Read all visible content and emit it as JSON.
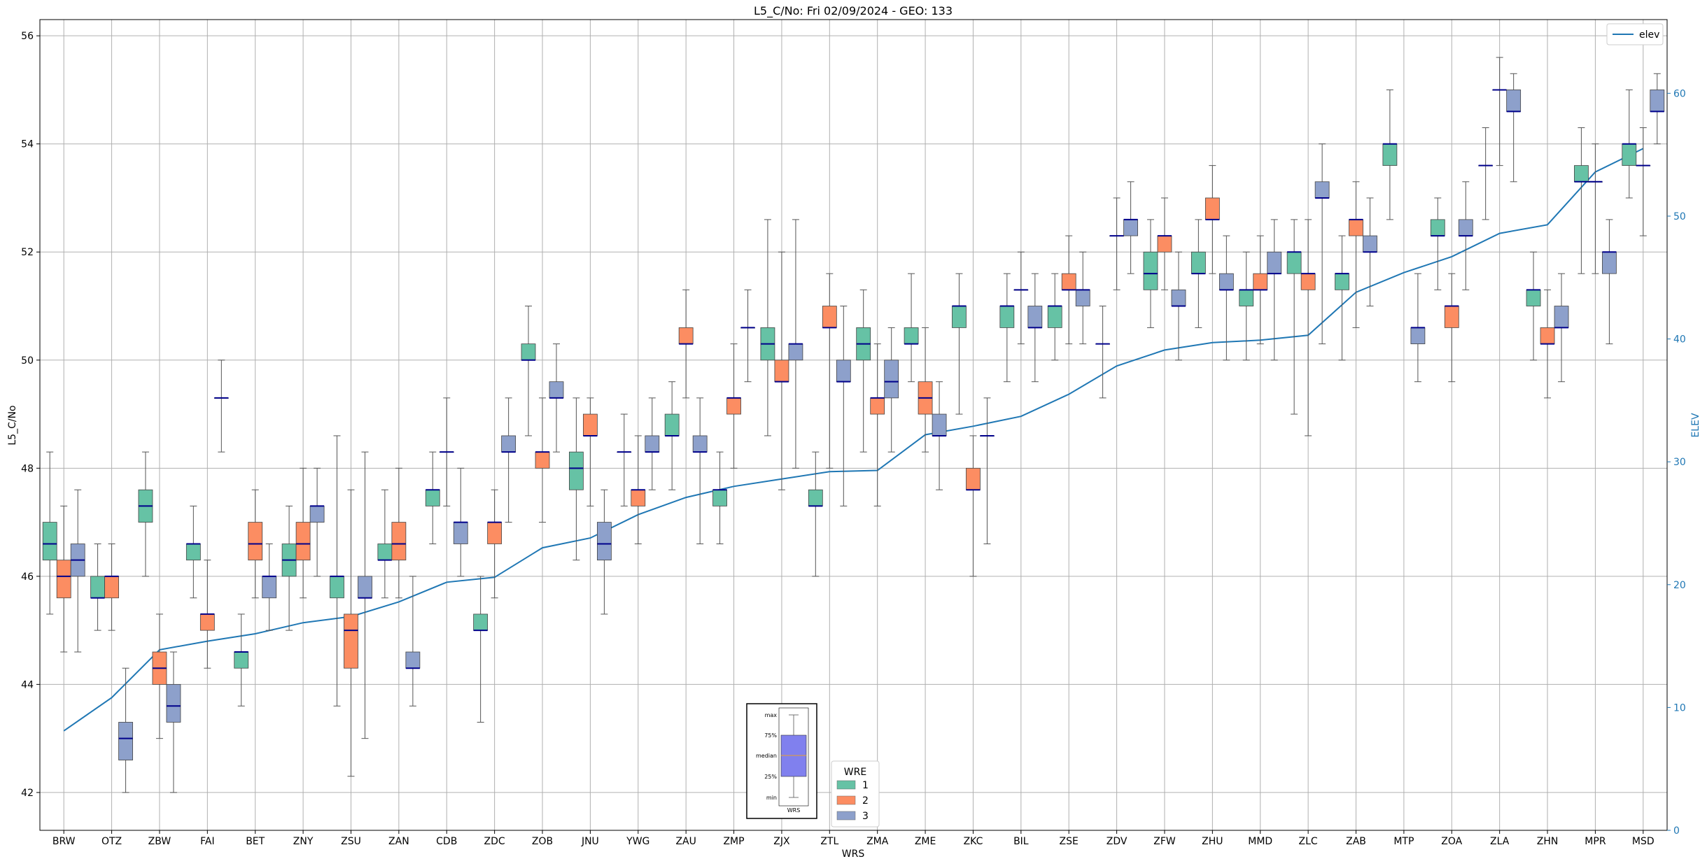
{
  "chart_data": {
    "type": "box",
    "title": "L5_C/No: Fri 02/09/2024 - GEO: 133",
    "xlabel": "WRS",
    "ylabel": "L5_C/No",
    "y2label": "ELEV",
    "ylim": [
      41.3,
      56.3
    ],
    "y2lim": [
      0,
      66
    ],
    "yticks": [
      42,
      44,
      46,
      48,
      50,
      52,
      54,
      56
    ],
    "y2ticks": [
      0,
      10,
      20,
      30,
      40,
      50,
      60
    ],
    "grid": true,
    "categories": [
      "BRW",
      "OTZ",
      "ZBW",
      "FAI",
      "BET",
      "ZNY",
      "ZSU",
      "ZAN",
      "CDB",
      "ZDC",
      "ZOB",
      "JNU",
      "YWG",
      "ZAU",
      "ZMP",
      "ZJX",
      "ZTL",
      "ZMA",
      "ZME",
      "ZKC",
      "BIL",
      "ZSE",
      "ZDV",
      "ZFW",
      "ZHU",
      "MMD",
      "ZLC",
      "ZAB",
      "MTP",
      "ZOA",
      "ZLA",
      "ZHN",
      "MPR",
      "MSD"
    ],
    "wre_colors": {
      "1": "#66c2a5",
      "2": "#fc8d62",
      "3": "#8da0cb"
    },
    "median_color": "#00008b",
    "whisker_color": "#555555",
    "boxes": [
      {
        "wrs": "BRW",
        "wre": 1,
        "min": 45.3,
        "q1": 46.3,
        "median": 46.6,
        "q3": 47.0,
        "max": 48.3
      },
      {
        "wrs": "BRW",
        "wre": 2,
        "min": 44.6,
        "q1": 45.6,
        "median": 46.0,
        "q3": 46.3,
        "max": 47.3
      },
      {
        "wrs": "BRW",
        "wre": 3,
        "min": 44.6,
        "q1": 46.0,
        "median": 46.3,
        "q3": 46.6,
        "max": 47.6
      },
      {
        "wrs": "OTZ",
        "wre": 1,
        "min": 45.0,
        "q1": 45.6,
        "median": 45.6,
        "q3": 46.0,
        "max": 46.6
      },
      {
        "wrs": "OTZ",
        "wre": 2,
        "min": 45.0,
        "q1": 45.6,
        "median": 46.0,
        "q3": 46.0,
        "max": 46.6
      },
      {
        "wrs": "OTZ",
        "wre": 3,
        "min": 42.0,
        "q1": 42.6,
        "median": 43.0,
        "q3": 43.3,
        "max": 44.3
      },
      {
        "wrs": "ZBW",
        "wre": 1,
        "min": 46.0,
        "q1": 47.0,
        "median": 47.3,
        "q3": 47.6,
        "max": 48.3
      },
      {
        "wrs": "ZBW",
        "wre": 2,
        "min": 43.0,
        "q1": 44.0,
        "median": 44.3,
        "q3": 44.6,
        "max": 45.3
      },
      {
        "wrs": "ZBW",
        "wre": 3,
        "min": 42.0,
        "q1": 43.3,
        "median": 43.6,
        "q3": 44.0,
        "max": 44.6
      },
      {
        "wrs": "FAI",
        "wre": 1,
        "min": 45.6,
        "q1": 46.3,
        "median": 46.6,
        "q3": 46.6,
        "max": 47.3
      },
      {
        "wrs": "FAI",
        "wre": 2,
        "min": 44.3,
        "q1": 45.0,
        "median": 45.3,
        "q3": 45.3,
        "max": 46.3
      },
      {
        "wrs": "FAI",
        "wre": 3,
        "min": 48.3,
        "q1": 49.3,
        "median": 49.3,
        "q3": 49.3,
        "max": 50.0
      },
      {
        "wrs": "BET",
        "wre": 1,
        "min": 43.6,
        "q1": 44.3,
        "median": 44.6,
        "q3": 44.6,
        "max": 45.3
      },
      {
        "wrs": "BET",
        "wre": 2,
        "min": 45.6,
        "q1": 46.3,
        "median": 46.6,
        "q3": 47.0,
        "max": 47.6
      },
      {
        "wrs": "BET",
        "wre": 3,
        "min": 45.0,
        "q1": 45.6,
        "median": 46.0,
        "q3": 46.0,
        "max": 46.6
      },
      {
        "wrs": "ZNY",
        "wre": 1,
        "min": 45.0,
        "q1": 46.0,
        "median": 46.3,
        "q3": 46.6,
        "max": 47.3
      },
      {
        "wrs": "ZNY",
        "wre": 2,
        "min": 45.6,
        "q1": 46.3,
        "median": 46.6,
        "q3": 47.0,
        "max": 48.0
      },
      {
        "wrs": "ZNY",
        "wre": 3,
        "min": 46.0,
        "q1": 47.0,
        "median": 47.3,
        "q3": 47.3,
        "max": 48.0
      },
      {
        "wrs": "ZSU",
        "wre": 1,
        "min": 43.6,
        "q1": 45.6,
        "median": 46.0,
        "q3": 46.0,
        "max": 48.6
      },
      {
        "wrs": "ZSU",
        "wre": 2,
        "min": 42.3,
        "q1": 44.3,
        "median": 45.0,
        "q3": 45.3,
        "max": 47.6
      },
      {
        "wrs": "ZSU",
        "wre": 3,
        "min": 43.0,
        "q1": 45.6,
        "median": 45.6,
        "q3": 46.0,
        "max": 48.3
      },
      {
        "wrs": "ZAN",
        "wre": 1,
        "min": 45.6,
        "q1": 46.3,
        "median": 46.3,
        "q3": 46.6,
        "max": 47.6
      },
      {
        "wrs": "ZAN",
        "wre": 2,
        "min": 45.6,
        "q1": 46.3,
        "median": 46.6,
        "q3": 47.0,
        "max": 48.0
      },
      {
        "wrs": "ZAN",
        "wre": 3,
        "min": 43.6,
        "q1": 44.3,
        "median": 44.3,
        "q3": 44.6,
        "max": 46.0
      },
      {
        "wrs": "CDB",
        "wre": 1,
        "min": 46.6,
        "q1": 47.3,
        "median": 47.6,
        "q3": 47.6,
        "max": 48.3
      },
      {
        "wrs": "CDB",
        "wre": 2,
        "min": 47.3,
        "q1": 48.3,
        "median": 48.3,
        "q3": 48.3,
        "max": 49.3
      },
      {
        "wrs": "CDB",
        "wre": 3,
        "min": 46.0,
        "q1": 46.6,
        "median": 47.0,
        "q3": 47.0,
        "max": 48.0
      },
      {
        "wrs": "ZDC",
        "wre": 1,
        "min": 43.3,
        "q1": 45.0,
        "median": 45.0,
        "q3": 45.3,
        "max": 46.0
      },
      {
        "wrs": "ZDC",
        "wre": 2,
        "min": 45.6,
        "q1": 46.6,
        "median": 47.0,
        "q3": 47.0,
        "max": 47.6
      },
      {
        "wrs": "ZDC",
        "wre": 3,
        "min": 47.0,
        "q1": 48.3,
        "median": 48.3,
        "q3": 48.6,
        "max": 49.3
      },
      {
        "wrs": "ZOB",
        "wre": 1,
        "min": 48.6,
        "q1": 50.0,
        "median": 50.0,
        "q3": 50.3,
        "max": 51.0
      },
      {
        "wrs": "ZOB",
        "wre": 2,
        "min": 47.0,
        "q1": 48.0,
        "median": 48.3,
        "q3": 48.3,
        "max": 49.3
      },
      {
        "wrs": "ZOB",
        "wre": 3,
        "min": 48.3,
        "q1": 49.3,
        "median": 49.3,
        "q3": 49.6,
        "max": 50.3
      },
      {
        "wrs": "JNU",
        "wre": 1,
        "min": 46.3,
        "q1": 47.6,
        "median": 48.0,
        "q3": 48.3,
        "max": 49.3
      },
      {
        "wrs": "JNU",
        "wre": 2,
        "min": 47.3,
        "q1": 48.6,
        "median": 48.6,
        "q3": 49.0,
        "max": 49.3
      },
      {
        "wrs": "JNU",
        "wre": 3,
        "min": 45.3,
        "q1": 46.3,
        "median": 46.6,
        "q3": 47.0,
        "max": 47.6
      },
      {
        "wrs": "YWG",
        "wre": 1,
        "min": 47.3,
        "q1": 48.3,
        "median": 48.3,
        "q3": 48.3,
        "max": 49.0
      },
      {
        "wrs": "YWG",
        "wre": 2,
        "min": 46.6,
        "q1": 47.3,
        "median": 47.6,
        "q3": 47.6,
        "max": 48.6
      },
      {
        "wrs": "YWG",
        "wre": 3,
        "min": 47.6,
        "q1": 48.3,
        "median": 48.3,
        "q3": 48.6,
        "max": 49.3
      },
      {
        "wrs": "ZAU",
        "wre": 1,
        "min": 47.6,
        "q1": 48.6,
        "median": 48.6,
        "q3": 49.0,
        "max": 49.6
      },
      {
        "wrs": "ZAU",
        "wre": 2,
        "min": 49.3,
        "q1": 50.3,
        "median": 50.3,
        "q3": 50.6,
        "max": 51.3
      },
      {
        "wrs": "ZAU",
        "wre": 3,
        "min": 46.6,
        "q1": 48.3,
        "median": 48.3,
        "q3": 48.6,
        "max": 49.3
      },
      {
        "wrs": "ZMP",
        "wre": 1,
        "min": 46.6,
        "q1": 47.3,
        "median": 47.6,
        "q3": 47.6,
        "max": 48.3
      },
      {
        "wrs": "ZMP",
        "wre": 2,
        "min": 48.0,
        "q1": 49.0,
        "median": 49.3,
        "q3": 49.3,
        "max": 50.3
      },
      {
        "wrs": "ZMP",
        "wre": 3,
        "min": 49.6,
        "q1": 50.6,
        "median": 50.6,
        "q3": 50.6,
        "max": 51.3
      },
      {
        "wrs": "ZJX",
        "wre": 1,
        "min": 48.6,
        "q1": 50.0,
        "median": 50.3,
        "q3": 50.6,
        "max": 52.6
      },
      {
        "wrs": "ZJX",
        "wre": 2,
        "min": 47.6,
        "q1": 49.6,
        "median": 49.6,
        "q3": 50.0,
        "max": 52.0
      },
      {
        "wrs": "ZJX",
        "wre": 3,
        "min": 48.0,
        "q1": 50.0,
        "median": 50.3,
        "q3": 50.3,
        "max": 52.6
      },
      {
        "wrs": "ZTL",
        "wre": 1,
        "min": 46.0,
        "q1": 47.3,
        "median": 47.3,
        "q3": 47.6,
        "max": 48.3
      },
      {
        "wrs": "ZTL",
        "wre": 2,
        "min": 48.0,
        "q1": 50.6,
        "median": 50.6,
        "q3": 51.0,
        "max": 51.6
      },
      {
        "wrs": "ZTL",
        "wre": 3,
        "min": 47.3,
        "q1": 49.6,
        "median": 49.6,
        "q3": 50.0,
        "max": 51.0
      },
      {
        "wrs": "ZMA",
        "wre": 1,
        "min": 48.3,
        "q1": 50.0,
        "median": 50.3,
        "q3": 50.6,
        "max": 51.3
      },
      {
        "wrs": "ZMA",
        "wre": 2,
        "min": 47.3,
        "q1": 49.0,
        "median": 49.3,
        "q3": 49.3,
        "max": 50.3
      },
      {
        "wrs": "ZMA",
        "wre": 3,
        "min": 48.3,
        "q1": 49.3,
        "median": 49.6,
        "q3": 50.0,
        "max": 50.6
      },
      {
        "wrs": "ZME",
        "wre": 1,
        "min": 49.6,
        "q1": 50.3,
        "median": 50.3,
        "q3": 50.6,
        "max": 51.6
      },
      {
        "wrs": "ZME",
        "wre": 2,
        "min": 48.3,
        "q1": 49.0,
        "median": 49.3,
        "q3": 49.6,
        "max": 50.6
      },
      {
        "wrs": "ZME",
        "wre": 3,
        "min": 47.6,
        "q1": 48.6,
        "median": 48.6,
        "q3": 49.0,
        "max": 49.6
      },
      {
        "wrs": "ZKC",
        "wre": 1,
        "min": 49.0,
        "q1": 50.6,
        "median": 51.0,
        "q3": 51.0,
        "max": 51.6
      },
      {
        "wrs": "ZKC",
        "wre": 2,
        "min": 46.0,
        "q1": 47.6,
        "median": 47.6,
        "q3": 48.0,
        "max": 48.6
      },
      {
        "wrs": "ZKC",
        "wre": 3,
        "min": 46.6,
        "q1": 48.6,
        "median": 48.6,
        "q3": 48.6,
        "max": 49.3
      },
      {
        "wrs": "BIL",
        "wre": 1,
        "min": 49.6,
        "q1": 50.6,
        "median": 51.0,
        "q3": 51.0,
        "max": 51.6
      },
      {
        "wrs": "BIL",
        "wre": 2,
        "min": 50.3,
        "q1": 51.3,
        "median": 51.3,
        "q3": 51.3,
        "max": 52.0
      },
      {
        "wrs": "BIL",
        "wre": 3,
        "min": 49.6,
        "q1": 50.6,
        "median": 50.6,
        "q3": 51.0,
        "max": 51.6
      },
      {
        "wrs": "ZSE",
        "wre": 1,
        "min": 50.0,
        "q1": 50.6,
        "median": 51.0,
        "q3": 51.0,
        "max": 51.6
      },
      {
        "wrs": "ZSE",
        "wre": 2,
        "min": 50.3,
        "q1": 51.3,
        "median": 51.3,
        "q3": 51.6,
        "max": 52.3
      },
      {
        "wrs": "ZSE",
        "wre": 3,
        "min": 50.3,
        "q1": 51.0,
        "median": 51.3,
        "q3": 51.3,
        "max": 52.0
      },
      {
        "wrs": "ZDV",
        "wre": 1,
        "min": 49.3,
        "q1": 50.3,
        "median": 50.3,
        "q3": 50.3,
        "max": 51.0
      },
      {
        "wrs": "ZDV",
        "wre": 2,
        "min": 51.3,
        "q1": 52.3,
        "median": 52.3,
        "q3": 52.3,
        "max": 53.0
      },
      {
        "wrs": "ZDV",
        "wre": 3,
        "min": 51.6,
        "q1": 52.3,
        "median": 52.6,
        "q3": 52.6,
        "max": 53.3
      },
      {
        "wrs": "ZFW",
        "wre": 1,
        "min": 50.6,
        "q1": 51.3,
        "median": 51.6,
        "q3": 52.0,
        "max": 52.6
      },
      {
        "wrs": "ZFW",
        "wre": 2,
        "min": 51.3,
        "q1": 52.0,
        "median": 52.3,
        "q3": 52.3,
        "max": 53.0
      },
      {
        "wrs": "ZFW",
        "wre": 3,
        "min": 50.0,
        "q1": 51.0,
        "median": 51.0,
        "q3": 51.3,
        "max": 52.0
      },
      {
        "wrs": "ZHU",
        "wre": 1,
        "min": 50.6,
        "q1": 51.6,
        "median": 51.6,
        "q3": 52.0,
        "max": 52.6
      },
      {
        "wrs": "ZHU",
        "wre": 2,
        "min": 51.6,
        "q1": 52.6,
        "median": 52.6,
        "q3": 53.0,
        "max": 53.6
      },
      {
        "wrs": "ZHU",
        "wre": 3,
        "min": 50.0,
        "q1": 51.3,
        "median": 51.3,
        "q3": 51.6,
        "max": 52.3
      },
      {
        "wrs": "MMD",
        "wre": 1,
        "min": 50.0,
        "q1": 51.0,
        "median": 51.3,
        "q3": 51.3,
        "max": 52.0
      },
      {
        "wrs": "MMD",
        "wre": 2,
        "min": 50.3,
        "q1": 51.3,
        "median": 51.3,
        "q3": 51.6,
        "max": 52.3
      },
      {
        "wrs": "MMD",
        "wre": 3,
        "min": 50.0,
        "q1": 51.6,
        "median": 51.6,
        "q3": 52.0,
        "max": 52.6
      },
      {
        "wrs": "ZLC",
        "wre": 1,
        "min": 49.0,
        "q1": 51.6,
        "median": 52.0,
        "q3": 52.0,
        "max": 52.6
      },
      {
        "wrs": "ZLC",
        "wre": 2,
        "min": 48.6,
        "q1": 51.3,
        "median": 51.6,
        "q3": 51.6,
        "max": 52.6
      },
      {
        "wrs": "ZLC",
        "wre": 3,
        "min": 50.3,
        "q1": 53.0,
        "median": 53.0,
        "q3": 53.3,
        "max": 54.0
      },
      {
        "wrs": "ZAB",
        "wre": 1,
        "min": 50.0,
        "q1": 51.3,
        "median": 51.6,
        "q3": 51.6,
        "max": 52.3
      },
      {
        "wrs": "ZAB",
        "wre": 2,
        "min": 50.6,
        "q1": 52.3,
        "median": 52.6,
        "q3": 52.6,
        "max": 53.3
      },
      {
        "wrs": "ZAB",
        "wre": 3,
        "min": 51.0,
        "q1": 52.0,
        "median": 52.0,
        "q3": 52.3,
        "max": 53.0
      },
      {
        "wrs": "MTP",
        "wre": 1,
        "min": 52.6,
        "q1": 53.6,
        "median": 54.0,
        "q3": 54.0,
        "max": 55.0
      },
      {
        "wrs": "ZOA",
        "wre": 1,
        "min": 51.3,
        "q1": 52.3,
        "median": 52.3,
        "q3": 52.6,
        "max": 53.0
      },
      {
        "wrs": "ZOA",
        "wre": 2,
        "min": 49.6,
        "q1": 50.6,
        "median": 51.0,
        "q3": 51.0,
        "max": 51.6
      },
      {
        "wrs": "ZOA",
        "wre": 3,
        "min": 51.3,
        "q1": 52.3,
        "median": 52.3,
        "q3": 52.6,
        "max": 53.3
      },
      {
        "wrs": "MTP",
        "wre": 3,
        "min": 49.6,
        "q1": 50.3,
        "median": 50.6,
        "q3": 50.6,
        "max": 51.6
      },
      {
        "wrs": "ZLA",
        "wre": 1,
        "min": 52.6,
        "q1": 53.6,
        "median": 53.6,
        "q3": 53.6,
        "max": 54.3
      },
      {
        "wrs": "ZLA",
        "wre": 2,
        "min": 53.6,
        "q1": 55.0,
        "median": 55.0,
        "q3": 55.0,
        "max": 55.6
      },
      {
        "wrs": "ZLA",
        "wre": 3,
        "min": 53.3,
        "q1": 54.6,
        "median": 54.6,
        "q3": 55.0,
        "max": 55.3
      },
      {
        "wrs": "ZHN",
        "wre": 1,
        "min": 50.0,
        "q1": 51.0,
        "median": 51.3,
        "q3": 51.3,
        "max": 52.0
      },
      {
        "wrs": "ZHN",
        "wre": 2,
        "min": 49.3,
        "q1": 50.3,
        "median": 50.3,
        "q3": 50.6,
        "max": 51.3
      },
      {
        "wrs": "ZHN",
        "wre": 3,
        "min": 49.6,
        "q1": 50.6,
        "median": 50.6,
        "q3": 51.0,
        "max": 51.6
      },
      {
        "wrs": "MPR",
        "wre": 1,
        "min": 51.6,
        "q1": 53.3,
        "median": 53.3,
        "q3": 53.6,
        "max": 54.3
      },
      {
        "wrs": "MPR",
        "wre": 2,
        "min": 51.6,
        "q1": 53.3,
        "median": 53.3,
        "q3": 53.3,
        "max": 54.0
      },
      {
        "wrs": "MPR",
        "wre": 3,
        "min": 50.3,
        "q1": 51.6,
        "median": 52.0,
        "q3": 52.0,
        "max": 52.6
      },
      {
        "wrs": "MSD",
        "wre": 1,
        "min": 53.0,
        "q1": 53.6,
        "median": 54.0,
        "q3": 54.0,
        "max": 55.0
      },
      {
        "wrs": "MSD",
        "wre": 2,
        "min": 52.3,
        "q1": 53.6,
        "median": 53.6,
        "q3": 53.6,
        "max": 54.3
      },
      {
        "wrs": "MSD",
        "wre": 3,
        "min": 54.0,
        "q1": 54.6,
        "median": 54.6,
        "q3": 55.0,
        "max": 55.3
      }
    ],
    "elev_line": {
      "name": "elev",
      "color": "#1f77b4",
      "values": [
        8.1,
        10.8,
        14.7,
        15.4,
        16.0,
        16.9,
        17.4,
        18.6,
        20.2,
        20.6,
        23.0,
        23.8,
        25.7,
        27.1,
        28.0,
        28.6,
        29.2,
        29.3,
        32.2,
        32.9,
        33.7,
        35.5,
        37.8,
        39.1,
        39.7,
        39.9,
        40.3,
        43.8,
        45.4,
        46.7,
        48.6,
        49.3,
        53.6,
        55.5
      ]
    },
    "legend_elev": {
      "label": "elev",
      "position": "top-right"
    },
    "legend_wre": {
      "title": "WRE",
      "entries": [
        "1",
        "2",
        "3"
      ],
      "position": "bottom-center"
    },
    "inset": {
      "labels": [
        "max",
        "75%",
        "median",
        "25%",
        "min"
      ],
      "xlabel": "WRS"
    }
  }
}
